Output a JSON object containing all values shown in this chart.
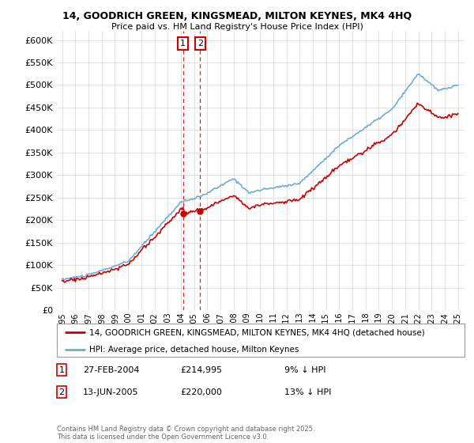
{
  "title": "14, GOODRICH GREEN, KINGSMEAD, MILTON KEYNES, MK4 4HQ",
  "subtitle": "Price paid vs. HM Land Registry's House Price Index (HPI)",
  "legend_line1": "14, GOODRICH GREEN, KINGSMEAD, MILTON KEYNES, MK4 4HQ (detached house)",
  "legend_line2": "HPI: Average price, detached house, Milton Keynes",
  "annotation1_date": "27-FEB-2004",
  "annotation1_price": "£214,995",
  "annotation1_hpi": "9% ↓ HPI",
  "annotation2_date": "13-JUN-2005",
  "annotation2_price": "£220,000",
  "annotation2_hpi": "13% ↓ HPI",
  "copyright": "Contains HM Land Registry data © Crown copyright and database right 2025.\nThis data is licensed under the Open Government Licence v3.0.",
  "hpi_color": "#6baed6",
  "price_color": "#cc0000",
  "vline_color": "#cc0000",
  "background_color": "#ffffff",
  "grid_color": "#cccccc",
  "ylim": [
    0,
    620000
  ],
  "yticks": [
    0,
    50000,
    100000,
    150000,
    200000,
    250000,
    300000,
    350000,
    400000,
    450000,
    500000,
    550000,
    600000
  ],
  "sale1_year": 2004.155,
  "sale2_year": 2005.452,
  "sale1_price": 214995,
  "sale2_price": 220000
}
